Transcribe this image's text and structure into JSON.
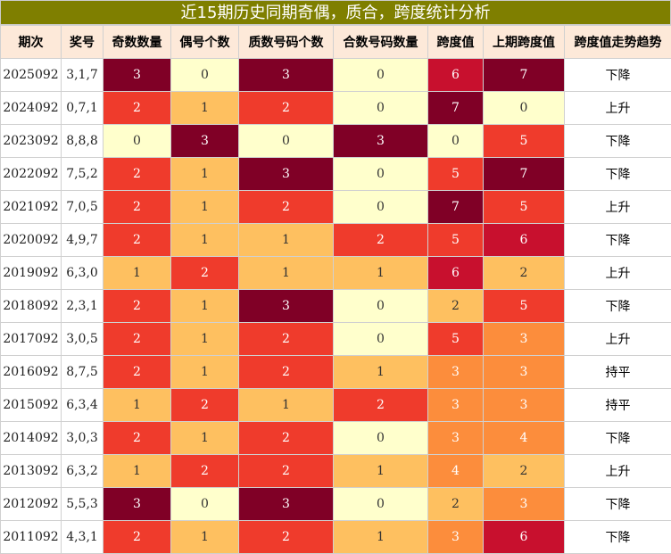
{
  "title": "近15期历史同期奇偶，质合，跨度统计分析",
  "headers": [
    "期次",
    "奖号",
    "奇数数量",
    "偶号个数",
    "质数号码个数",
    "合数号码数量",
    "跨度值",
    "上期跨度值",
    "跨度值走势趋势"
  ],
  "colors": {
    "title_bg": "#7f7f00",
    "header_bg": "#fde9d9",
    "maroon": "#800026",
    "crimson": "#c8102e",
    "red": "#ef3b2c",
    "orange": "#fc8d3c",
    "tan": "#fec060",
    "light": "#ffffcc"
  },
  "rows": [
    {
      "period": "2025092",
      "numbers": "3,1,7",
      "odd": "3",
      "even": "0",
      "prime": "3",
      "composite": "0",
      "span": "6",
      "prev_span": "7",
      "trend": "下降"
    },
    {
      "period": "2024092",
      "numbers": "0,7,1",
      "odd": "2",
      "even": "1",
      "prime": "2",
      "composite": "0",
      "span": "7",
      "prev_span": "0",
      "trend": "上升"
    },
    {
      "period": "2023092",
      "numbers": "8,8,8",
      "odd": "0",
      "even": "3",
      "prime": "0",
      "composite": "3",
      "span": "0",
      "prev_span": "5",
      "trend": "下降"
    },
    {
      "period": "2022092",
      "numbers": "7,5,2",
      "odd": "2",
      "even": "1",
      "prime": "3",
      "composite": "0",
      "span": "5",
      "prev_span": "7",
      "trend": "下降"
    },
    {
      "period": "2021092",
      "numbers": "7,0,5",
      "odd": "2",
      "even": "1",
      "prime": "2",
      "composite": "0",
      "span": "7",
      "prev_span": "5",
      "trend": "上升"
    },
    {
      "period": "2020092",
      "numbers": "4,9,7",
      "odd": "2",
      "even": "1",
      "prime": "1",
      "composite": "2",
      "span": "5",
      "prev_span": "6",
      "trend": "下降"
    },
    {
      "period": "2019092",
      "numbers": "6,3,0",
      "odd": "1",
      "even": "2",
      "prime": "1",
      "composite": "1",
      "span": "6",
      "prev_span": "2",
      "trend": "上升"
    },
    {
      "period": "2018092",
      "numbers": "2,3,1",
      "odd": "2",
      "even": "1",
      "prime": "3",
      "composite": "0",
      "span": "2",
      "prev_span": "5",
      "trend": "下降"
    },
    {
      "period": "2017092",
      "numbers": "3,0,5",
      "odd": "2",
      "even": "1",
      "prime": "2",
      "composite": "0",
      "span": "5",
      "prev_span": "3",
      "trend": "上升"
    },
    {
      "period": "2016092",
      "numbers": "8,7,5",
      "odd": "2",
      "even": "1",
      "prime": "2",
      "composite": "1",
      "span": "3",
      "prev_span": "3",
      "trend": "持平"
    },
    {
      "period": "2015092",
      "numbers": "6,3,4",
      "odd": "1",
      "even": "2",
      "prime": "1",
      "composite": "2",
      "span": "3",
      "prev_span": "3",
      "trend": "持平"
    },
    {
      "period": "2014092",
      "numbers": "3,0,3",
      "odd": "2",
      "even": "1",
      "prime": "2",
      "composite": "0",
      "span": "3",
      "prev_span": "4",
      "trend": "下降"
    },
    {
      "period": "2013092",
      "numbers": "6,3,2",
      "odd": "1",
      "even": "2",
      "prime": "2",
      "composite": "1",
      "span": "4",
      "prev_span": "2",
      "trend": "上升"
    },
    {
      "period": "2012092",
      "numbers": "5,5,3",
      "odd": "3",
      "even": "0",
      "prime": "3",
      "composite": "0",
      "span": "2",
      "prev_span": "3",
      "trend": "下降"
    },
    {
      "period": "2011092",
      "numbers": "4,3,1",
      "odd": "2",
      "even": "1",
      "prime": "2",
      "composite": "1",
      "span": "3",
      "prev_span": "6",
      "trend": "下降"
    }
  ]
}
